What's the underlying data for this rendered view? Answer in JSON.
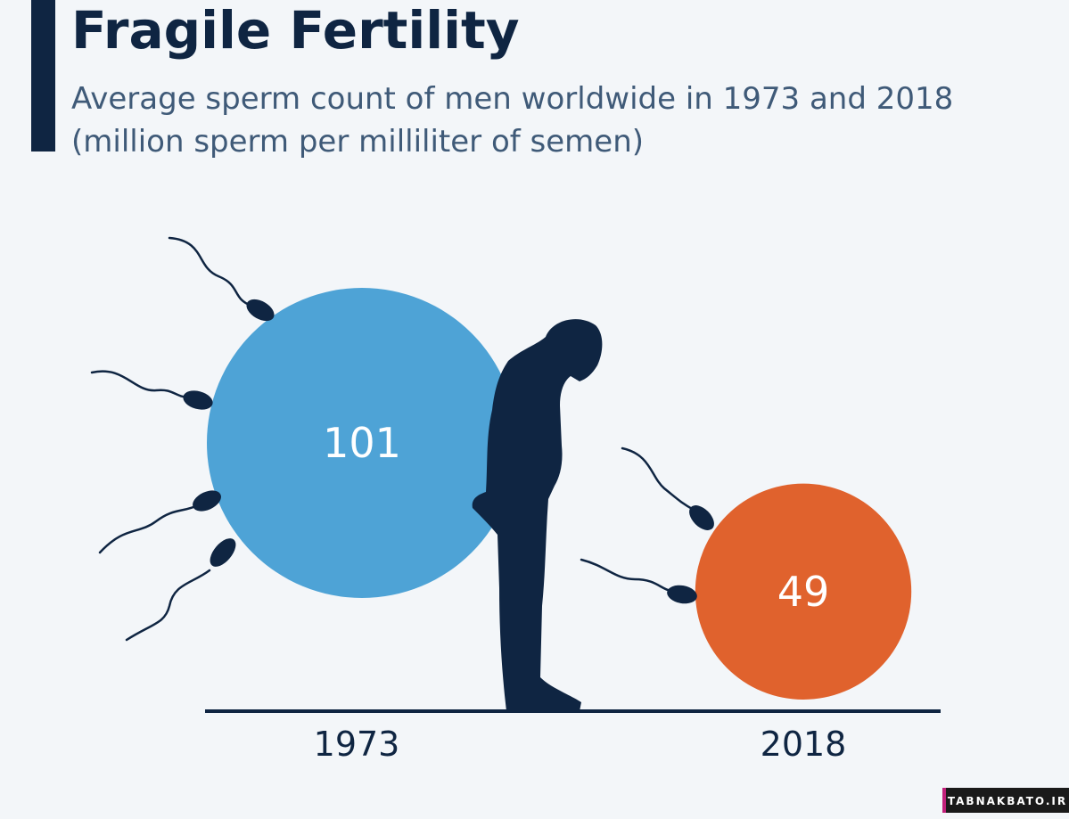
{
  "chart_data": {
    "type": "bubble",
    "title": "Fragile Fertility",
    "subtitle_lines": [
      "Average sperm count of men worldwide in 1973 and 2018",
      "(million sperm per milliliter of semen)"
    ],
    "categories": [
      "1973",
      "2018"
    ],
    "values": [
      101,
      49
    ],
    "colors": [
      "#4ea3d6",
      "#e0622d"
    ],
    "watermark": "TABNAKBATO.IR"
  }
}
